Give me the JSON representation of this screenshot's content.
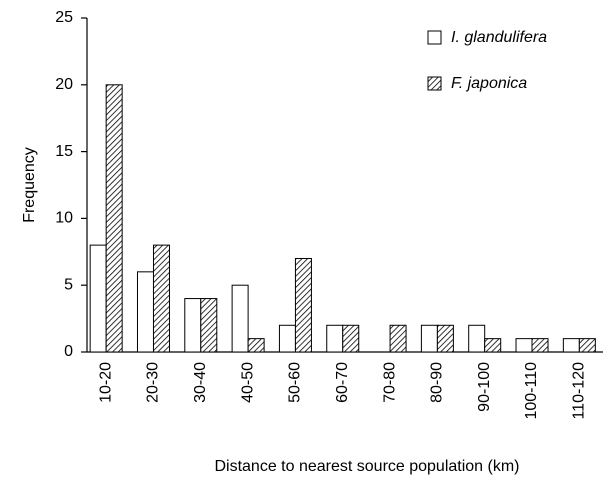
{
  "chart_data": {
    "type": "bar",
    "xlabel": "Distance to nearest source population (km)",
    "ylabel": "Frequency",
    "categories": [
      "10-20",
      "20-30",
      "30-40",
      "40-50",
      "50-60",
      "60-70",
      "70-80",
      "80-90",
      "90-100",
      "100-110",
      "110-120"
    ],
    "series": [
      {
        "name": "I. glandulifera",
        "color": "#ffffff",
        "hatch": false,
        "values": [
          8,
          6,
          4,
          5,
          2,
          2,
          0,
          2,
          2,
          1,
          1
        ]
      },
      {
        "name": "F. japonica",
        "color": "#ffffff",
        "hatch": true,
        "values": [
          20,
          8,
          4,
          1,
          7,
          2,
          2,
          2,
          1,
          1,
          1
        ]
      }
    ],
    "ylim": [
      0,
      25
    ],
    "yticks": [
      0,
      5,
      10,
      15,
      20,
      25
    ],
    "grid": false,
    "legend": "upper right"
  }
}
